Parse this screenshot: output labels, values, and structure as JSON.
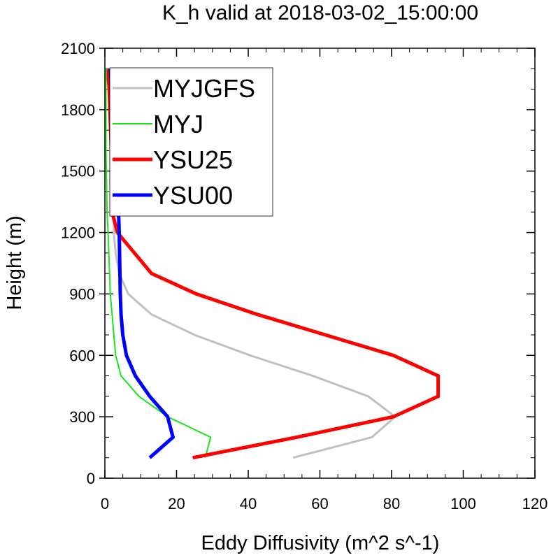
{
  "chart_data": {
    "type": "line",
    "title": "K_h valid at 2018-03-02_15:00:00",
    "xlabel": "Eddy Diffusivity (m^2 s^-1)",
    "ylabel": "Height (m)",
    "xlim": [
      0,
      120
    ],
    "ylim": [
      0,
      2100
    ],
    "xticks": [
      0,
      20,
      40,
      60,
      80,
      100,
      120
    ],
    "yticks": [
      0,
      300,
      600,
      900,
      1200,
      1500,
      1800,
      2100
    ],
    "grid": false,
    "legend_position": "top-left",
    "series": [
      {
        "name": "MYJGFS",
        "color": "#c0c0c0",
        "width": 3,
        "x": [
          52.5,
          74.5,
          81.0,
          73.5,
          58.0,
          40.5,
          25.0,
          13.0,
          6.5,
          4.0,
          3.0,
          2.5,
          2.5,
          2.5,
          2.5,
          2.5,
          2.5,
          2.5,
          2.5,
          2.8
        ],
        "y": [
          100,
          200,
          300,
          400,
          500,
          600,
          700,
          800,
          900,
          1000,
          1100,
          1200,
          1300,
          1400,
          1500,
          1600,
          1700,
          1800,
          1900,
          2000
        ]
      },
      {
        "name": "MYJ",
        "color": "#19e619",
        "width": 2,
        "x": [
          28.0,
          29.5,
          17.5,
          9.5,
          4.5,
          3.0,
          2.5,
          2.0,
          1.5,
          1.3,
          1.1,
          0.9,
          0.6,
          0.5,
          0.4,
          0.3,
          0.3,
          0.3,
          0.3,
          0.3
        ],
        "y": [
          100,
          200,
          300,
          400,
          500,
          600,
          700,
          800,
          900,
          1000,
          1100,
          1200,
          1300,
          1400,
          1500,
          1600,
          1700,
          1800,
          1900,
          2000
        ]
      },
      {
        "name": "YSU25",
        "color": "#ff0000",
        "width": 5,
        "x": [
          24.5,
          53.5,
          80.5,
          93.0,
          93.0,
          80.5,
          61.5,
          42.5,
          25.5,
          13.0,
          3.5,
          2.0,
          1.8,
          1.8,
          1.8,
          1.6,
          1.4,
          1.2,
          1.0,
          1.0
        ],
        "y": [
          100,
          200,
          300,
          400,
          500,
          600,
          700,
          800,
          900,
          1000,
          1200,
          1300,
          1400,
          1500,
          1600,
          1700,
          1800,
          1900,
          1950,
          2000
        ]
      },
      {
        "name": "YSU00",
        "color": "#0000ff",
        "width": 5,
        "x": [
          12.5,
          19.0,
          17.5,
          12.5,
          8.5,
          6.0,
          5.0,
          4.5,
          4.3,
          4.2,
          4.1,
          4.0,
          3.8,
          3.6,
          3.3,
          3.0,
          2.7,
          2.3,
          1.8,
          1.5
        ],
        "y": [
          100,
          200,
          300,
          400,
          500,
          600,
          700,
          800,
          900,
          1000,
          1100,
          1200,
          1300,
          1400,
          1500,
          1600,
          1700,
          1800,
          1900,
          2000
        ]
      }
    ]
  }
}
